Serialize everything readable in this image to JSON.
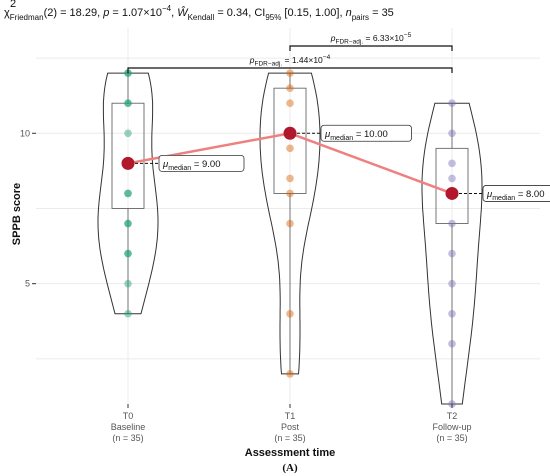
{
  "subtitle": {
    "chi_prefix": "χ",
    "chi_sup": "2",
    "chi_sub": "Friedman",
    "chi_rest": "(2) = 18.29, ",
    "p_label": "p",
    "p_value": " = 1.07×10",
    "p_exp": "−4",
    "sep1": ", ",
    "w_label": "Ŵ",
    "w_sub": "Kendall",
    "w_value": " = 0.34, CI",
    "ci_sub": "95%",
    "ci_value": " [0.15, 1.00], ",
    "n_label": "n",
    "n_sub": "pairs",
    "n_value": " = 35"
  },
  "chart_data": {
    "type": "violin",
    "xlabel": "Assessment time",
    "ylabel": "SPPB score",
    "ylim": [
      1,
      13.5
    ],
    "yticks": [
      5,
      10
    ],
    "grid": true,
    "panel_label": "(A)",
    "groups": [
      {
        "tick": "T0",
        "name": "Baseline",
        "n": "(n = 35)",
        "color": "#1b9e77",
        "points": [
          4,
          5,
          6,
          6,
          7,
          7,
          8,
          8,
          9,
          10,
          11,
          11,
          12,
          12
        ],
        "box": {
          "q1": 7.5,
          "median": 9,
          "q3": 11
        },
        "min": 4,
        "max": 12,
        "median_label": "median",
        "median_value": " = 9.00"
      },
      {
        "tick": "T1",
        "name": "Post",
        "n": "(n = 35)",
        "color": "#d95f02",
        "points": [
          2,
          4,
          7,
          8,
          8.5,
          9.5,
          10,
          11,
          11.5,
          12
        ],
        "box": {
          "q1": 8,
          "median": 10,
          "q3": 11.5
        },
        "min": 2,
        "max": 12,
        "median_label": "median",
        "median_value": " = 10.00"
      },
      {
        "tick": "T2",
        "name": "Follow-up",
        "n": "(n = 35)",
        "color": "#7570b3",
        "points": [
          1,
          3,
          4,
          5,
          6,
          7,
          8,
          8.5,
          9,
          10,
          11
        ],
        "box": {
          "q1": 7,
          "median": 8,
          "q3": 9.5
        },
        "min": 1,
        "max": 11,
        "median_label": "median",
        "median_value": " = 8.00"
      }
    ],
    "median_line_color": "#f08080",
    "median_point_color": "#b2182b",
    "comparisons": [
      {
        "from": 1,
        "to": 2,
        "label_p": "p",
        "label_sub": "FDR−adj.",
        "label_value": " = 6.33×10",
        "label_exp": "−5"
      },
      {
        "from": 0,
        "to": 2,
        "label_p": "p",
        "label_sub": "FDR−adj.",
        "label_value": " = 1.44×10",
        "label_exp": "−4"
      }
    ]
  }
}
